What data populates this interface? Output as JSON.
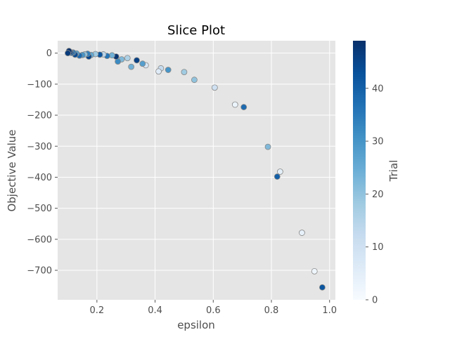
{
  "chart_data": {
    "type": "scatter",
    "title": "Slice Plot",
    "xlabel": "epsilon",
    "ylabel": "Objective Value",
    "xlim": [
      0.065,
      1.02
    ],
    "ylim": [
      -795,
      40
    ],
    "xticks": [
      0.2,
      0.4,
      0.6,
      0.8,
      1.0
    ],
    "xtick_labels": [
      "0.2",
      "0.4",
      "0.6",
      "0.8",
      "1.0"
    ],
    "yticks": [
      0,
      -100,
      -200,
      -300,
      -400,
      -500,
      -600,
      -700
    ],
    "ytick_labels": [
      "0",
      "−100",
      "−200",
      "−300",
      "−400",
      "−500",
      "−600",
      "−700"
    ],
    "grid": true,
    "colorbar": {
      "label": "Trial",
      "range": [
        0,
        49
      ],
      "ticks": [
        0,
        10,
        20,
        30,
        40
      ],
      "tick_labels": [
        "0",
        "10",
        "20",
        "30",
        "40"
      ],
      "colormap": "Blues"
    },
    "points": [
      {
        "x": 0.975,
        "y": -755,
        "trial": 42
      },
      {
        "x": 0.948,
        "y": -703,
        "trial": 2
      },
      {
        "x": 0.905,
        "y": -579,
        "trial": 4
      },
      {
        "x": 0.83,
        "y": -382,
        "trial": 5
      },
      {
        "x": 0.82,
        "y": -398,
        "trial": 40
      },
      {
        "x": 0.788,
        "y": -302,
        "trial": 22
      },
      {
        "x": 0.705,
        "y": -174,
        "trial": 38
      },
      {
        "x": 0.675,
        "y": -166,
        "trial": 3
      },
      {
        "x": 0.605,
        "y": -111,
        "trial": 10
      },
      {
        "x": 0.535,
        "y": -86,
        "trial": 20
      },
      {
        "x": 0.5,
        "y": -61,
        "trial": 18
      },
      {
        "x": 0.445,
        "y": -54,
        "trial": 30
      },
      {
        "x": 0.42,
        "y": -49,
        "trial": 12
      },
      {
        "x": 0.412,
        "y": -59,
        "trial": 6
      },
      {
        "x": 0.368,
        "y": -39,
        "trial": 8
      },
      {
        "x": 0.357,
        "y": -34,
        "trial": 28
      },
      {
        "x": 0.337,
        "y": -23,
        "trial": 46
      },
      {
        "x": 0.318,
        "y": -44,
        "trial": 24
      },
      {
        "x": 0.305,
        "y": -16,
        "trial": 16
      },
      {
        "x": 0.285,
        "y": -20,
        "trial": 22
      },
      {
        "x": 0.272,
        "y": -27,
        "trial": 32
      },
      {
        "x": 0.266,
        "y": -11,
        "trial": 48
      },
      {
        "x": 0.252,
        "y": -7,
        "trial": 24
      },
      {
        "x": 0.235,
        "y": -9,
        "trial": 36
      },
      {
        "x": 0.222,
        "y": -4,
        "trial": 14
      },
      {
        "x": 0.21,
        "y": -5,
        "trial": 42
      },
      {
        "x": 0.195,
        "y": -3,
        "trial": 18
      },
      {
        "x": 0.18,
        "y": -6,
        "trial": 26
      },
      {
        "x": 0.172,
        "y": -11,
        "trial": 45
      },
      {
        "x": 0.168,
        "y": -2,
        "trial": 34
      },
      {
        "x": 0.158,
        "y": -4,
        "trial": 20
      },
      {
        "x": 0.15,
        "y": -6,
        "trial": 30
      },
      {
        "x": 0.14,
        "y": -8,
        "trial": 38
      },
      {
        "x": 0.13,
        "y": -1,
        "trial": 28
      },
      {
        "x": 0.125,
        "y": -5,
        "trial": 44
      },
      {
        "x": 0.118,
        "y": 2,
        "trial": 36
      },
      {
        "x": 0.112,
        "y": 1,
        "trial": 40
      },
      {
        "x": 0.108,
        "y": 4,
        "trial": 46
      },
      {
        "x": 0.104,
        "y": 7,
        "trial": 49
      },
      {
        "x": 0.1,
        "y": 0,
        "trial": 47
      }
    ]
  }
}
